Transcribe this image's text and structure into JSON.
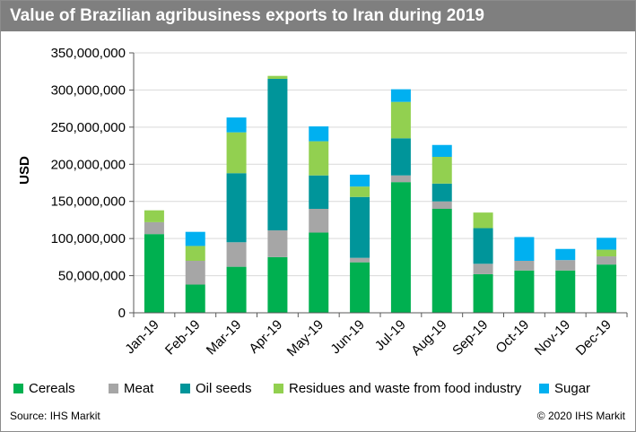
{
  "title": "Value of Brazilian agribusiness exports to Iran during 2019",
  "footer": {
    "source": "Source: IHS Markit",
    "copyright": "© 2020 IHS Markit"
  },
  "chart_data": {
    "type": "bar",
    "stacked": true,
    "title": "Value of Brazilian agribusiness exports to Iran during 2019",
    "xlabel": "",
    "ylabel": "USD",
    "ylim": [
      0,
      350000000
    ],
    "yticks": [
      0,
      50000000,
      100000000,
      150000000,
      200000000,
      250000000,
      300000000,
      350000000
    ],
    "ytick_labels": [
      "0",
      "50,000,000",
      "100,000,000",
      "150,000,000",
      "200,000,000",
      "250,000,000",
      "300,000,000",
      "350,000,000"
    ],
    "grid": "horizontal",
    "legend_position": "bottom",
    "categories": [
      "Jan-19",
      "Feb-19",
      "Mar-19",
      "Apr-19",
      "May-19",
      "Jun-19",
      "Jul-19",
      "Aug-19",
      "Sep-19",
      "Oct-19",
      "Nov-19",
      "Dec-19"
    ],
    "series": [
      {
        "name": "Cereals",
        "color": "#00b050",
        "values": [
          106000000,
          38000000,
          62000000,
          75000000,
          108000000,
          68000000,
          176000000,
          140000000,
          52000000,
          57000000,
          57000000,
          65000000
        ]
      },
      {
        "name": "Meat",
        "color": "#a6a6a6",
        "values": [
          16000000,
          32000000,
          33000000,
          36000000,
          32000000,
          6000000,
          9000000,
          10000000,
          14000000,
          13000000,
          14000000,
          11000000
        ]
      },
      {
        "name": "Oil seeds",
        "color": "#00959a",
        "values": [
          0,
          0,
          93000000,
          204000000,
          45000000,
          82000000,
          50000000,
          24000000,
          48000000,
          0,
          0,
          0
        ]
      },
      {
        "name": "Residues and waste from food industry",
        "color": "#92d050",
        "values": [
          16000000,
          20000000,
          55000000,
          4000000,
          46000000,
          14000000,
          49000000,
          36000000,
          21000000,
          0,
          0,
          9000000
        ]
      },
      {
        "name": "Sugar",
        "color": "#00b0f0",
        "values": [
          0,
          19000000,
          20000000,
          0,
          20000000,
          16000000,
          17000000,
          16000000,
          0,
          32000000,
          15000000,
          16000000
        ]
      }
    ]
  }
}
